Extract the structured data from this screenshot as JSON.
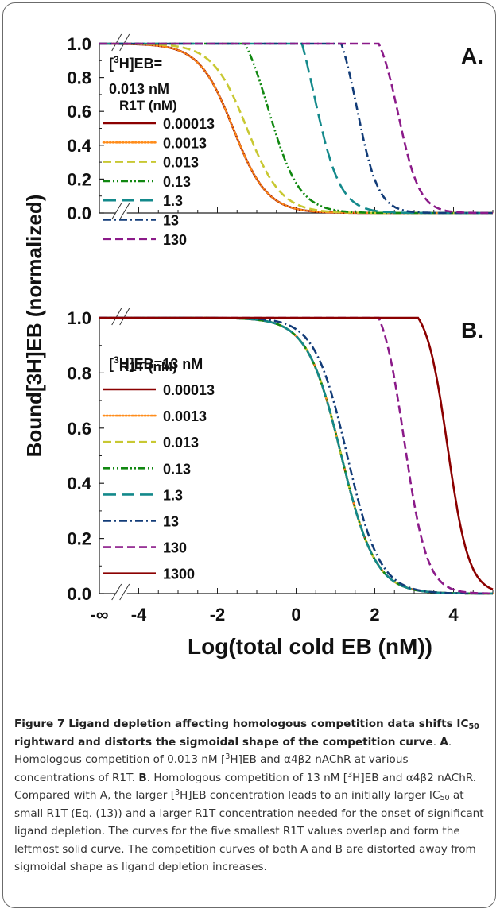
{
  "chart_data": [
    {
      "panel": "A",
      "type": "line",
      "xlabel": "Log(total cold EB (nM))",
      "ylabel": "Bound[3H]EB (normalized)",
      "xlim": [
        -5,
        5
      ],
      "ylim": [
        0,
        1
      ],
      "x_ticks": [
        "-∞",
        "-4",
        "-2",
        "0",
        "2",
        "4"
      ],
      "y_ticks": [
        "0.0",
        "0.2",
        "0.4",
        "0.6",
        "0.8",
        "1.0"
      ],
      "annotation": {
        "line1_pre": "[",
        "sup": "3",
        "line1_post": "H]EB=",
        "line2": "0.013 nM"
      },
      "panel_label": "A.",
      "legend_title": "R1T (nM)",
      "legend_position": "left",
      "series": [
        {
          "name": "0.00013",
          "color": "#8b0000",
          "dash": "solid",
          "log_ic50": -1.6,
          "hill": 1.0
        },
        {
          "name": "0.0013",
          "color": "#ff8c1a",
          "dash": "dotted",
          "log_ic50": -1.6,
          "hill": 1.0
        },
        {
          "name": "0.013",
          "color": "#c8c832",
          "dash": "dashed",
          "log_ic50": -1.25,
          "hill": 1.0
        },
        {
          "name": "0.13",
          "color": "#118811",
          "dash": "dashdotdot",
          "log_ic50": -0.7,
          "hill": 1.1,
          "plateau_end": -1.3
        },
        {
          "name": "1.3",
          "color": "#13898b",
          "dash": "longdash",
          "log_ic50": 0.45,
          "hill": 1.3,
          "plateau_end": 0.15
        },
        {
          "name": "13",
          "color": "#123c78",
          "dash": "dashdot",
          "log_ic50": 1.55,
          "hill": 1.6,
          "plateau_end": 1.15
        },
        {
          "name": "130",
          "color": "#8b1a89",
          "dash": "dashed",
          "log_ic50": 2.6,
          "hill": 1.6,
          "plateau_end": 2.1
        }
      ]
    },
    {
      "panel": "B",
      "type": "line",
      "xlabel": "Log(total cold EB (nM))",
      "ylabel": "Bound[3H]EB (normalized)",
      "xlim": [
        -5,
        5
      ],
      "ylim": [
        0,
        1
      ],
      "x_ticks": [
        "-∞",
        "-4",
        "-2",
        "0",
        "2",
        "4"
      ],
      "y_ticks": [
        "0.0",
        "0.2",
        "0.4",
        "0.6",
        "0.8",
        "1.0"
      ],
      "annotation": {
        "line1_pre": "[",
        "sup": "3",
        "line1_post": "H]EB=13 nM"
      },
      "panel_label": "B.",
      "legend_title": "R1T (nM)",
      "legend_position": "left",
      "series": [
        {
          "name": "0.00013",
          "color": "#8b0000",
          "dash": "solid",
          "log_ic50": 1.15,
          "hill": 1.0
        },
        {
          "name": "0.0013",
          "color": "#ff8c1a",
          "dash": "dotted",
          "log_ic50": 1.15,
          "hill": 1.0
        },
        {
          "name": "0.013",
          "color": "#c8c832",
          "dash": "dashed",
          "log_ic50": 1.15,
          "hill": 1.0
        },
        {
          "name": "0.13",
          "color": "#118811",
          "dash": "dashdotdot",
          "log_ic50": 1.15,
          "hill": 1.0
        },
        {
          "name": "1.3",
          "color": "#13898b",
          "dash": "longdash",
          "log_ic50": 1.15,
          "hill": 1.0
        },
        {
          "name": "13",
          "color": "#123c78",
          "dash": "dashdot",
          "log_ic50": 1.3,
          "hill": 1.05
        },
        {
          "name": "130",
          "color": "#8b1a89",
          "dash": "dashed",
          "log_ic50": 2.75,
          "hill": 1.5,
          "plateau_end": 2.1
        },
        {
          "name": "1300",
          "color": "#8b0000",
          "dash": "solid",
          "log_ic50": 3.85,
          "hill": 1.6,
          "plateau_end": 3.1
        }
      ]
    }
  ],
  "caption": {
    "figure_label": "Figure 7",
    "title_a": " Ligand depletion affecting homologous competition data shifts IC",
    "title_sub": "50",
    "title_b": " rightward and distorts the sigmoidal shape of the competition curve",
    "dot": ". ",
    "panel_a": "A",
    "text_a1": ". Homologous competition of 0.013 nM [",
    "sup1": "3",
    "text_a2": "H]EB and α4β2 nAChR at various concentrations of R1T. ",
    "panel_b": "B",
    "text_b1": ". Homologous competition of 13 nM [",
    "sup2": "3",
    "text_b2": "H]EB and α4β2 nAChR. Compared with A, the larger [",
    "sup3": "3",
    "text_b3": "H]EB concentration leads to an initially larger IC",
    "sub2": "50",
    "text_b4": " at small R1T (Eq. (13)) and a larger R1T concentration needed for the onset of significant ligand depletion. The curves for the five smallest R1T values overlap and form the leftmost solid curve. The competition curves of both A and B are distorted away from sigmoidal shape as ligand depletion increases."
  }
}
